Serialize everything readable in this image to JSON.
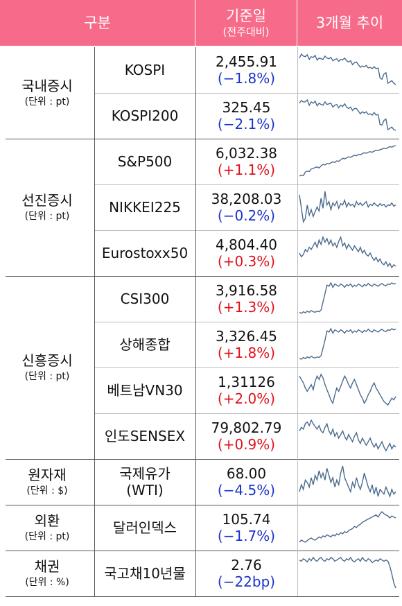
{
  "header": {
    "col_category": "구분",
    "col_value": "기준일",
    "col_value_sub": "(전주대비)",
    "col_trend": "3개월 추이"
  },
  "groups": [
    {
      "name": "국내증시",
      "unit": "(단위 : pt)",
      "rows": [
        {
          "index": "KOSPI",
          "value": "2,455.91",
          "change": "(−1.8%)",
          "direction": "down",
          "trend": [
            60,
            66,
            63,
            62,
            65,
            58,
            62,
            61,
            64,
            57,
            60,
            59,
            58,
            63,
            60,
            59,
            61,
            56,
            58,
            59,
            55,
            58,
            57,
            60,
            56,
            54,
            56,
            50,
            53,
            54,
            50,
            46,
            48,
            47,
            49,
            45,
            46,
            44,
            47,
            44,
            45,
            30,
            28,
            36,
            38,
            22,
            24,
            26,
            22,
            20
          ]
        },
        {
          "index": "KOSPI200",
          "value": "325.45",
          "change": "(−2.1%)",
          "direction": "down",
          "trend": [
            60,
            64,
            62,
            62,
            65,
            57,
            62,
            60,
            63,
            56,
            60,
            58,
            57,
            62,
            58,
            59,
            60,
            54,
            57,
            58,
            53,
            57,
            55,
            59,
            54,
            52,
            54,
            49,
            52,
            52,
            48,
            44,
            47,
            45,
            47,
            43,
            44,
            42,
            46,
            42,
            43,
            28,
            27,
            34,
            36,
            20,
            22,
            24,
            20,
            19
          ]
        }
      ]
    },
    {
      "name": "선진증시",
      "unit": "(단위 : pt)",
      "rows": [
        {
          "index": "S&P500",
          "value": "6,032.38",
          "change": "(+1.1%)",
          "direction": "up",
          "trend": [
            10,
            12,
            11,
            18,
            20,
            19,
            24,
            25,
            27,
            28,
            26,
            30,
            33,
            32,
            35,
            34,
            36,
            38,
            37,
            40,
            39,
            42,
            45,
            44,
            46,
            48,
            47,
            49,
            51,
            50,
            53,
            52,
            54,
            56,
            55,
            57,
            58,
            57,
            59,
            61,
            60,
            62,
            63,
            65,
            64,
            66,
            68,
            67,
            69,
            70
          ]
        },
        {
          "index": "NIKKEI225",
          "value": "38,208.03",
          "change": "(−0.2%)",
          "direction": "down",
          "trend": [
            60,
            40,
            20,
            25,
            45,
            30,
            38,
            28,
            35,
            42,
            36,
            55,
            40,
            65,
            45,
            50,
            38,
            48,
            44,
            50,
            40,
            47,
            45,
            52,
            42,
            48,
            44,
            46,
            42,
            50,
            45,
            48,
            44,
            47,
            50,
            42,
            46,
            44,
            48,
            45,
            43,
            47,
            44,
            46,
            42,
            45,
            44,
            48,
            43,
            45
          ]
        },
        {
          "index": "Eurostoxx50",
          "value": "4,804.40",
          "change": "(+0.3%)",
          "direction": "up",
          "trend": [
            40,
            35,
            38,
            45,
            42,
            48,
            45,
            50,
            55,
            48,
            58,
            52,
            62,
            55,
            60,
            52,
            58,
            50,
            54,
            48,
            56,
            62,
            50,
            54,
            46,
            52,
            48,
            44,
            50,
            46,
            42,
            48,
            40,
            44,
            38,
            36,
            40,
            34,
            30,
            34,
            28,
            32,
            26,
            24,
            28,
            22,
            26,
            20,
            24,
            22
          ]
        }
      ]
    },
    {
      "name": "신흥증시",
      "unit": "(단위 : pt)",
      "rows": [
        {
          "index": "CSI300",
          "value": "3,916.58",
          "change": "(+1.3%)",
          "direction": "up",
          "trend": [
            12,
            10,
            13,
            11,
            14,
            12,
            15,
            13,
            12,
            14,
            13,
            16,
            30,
            45,
            60,
            58,
            64,
            56,
            62,
            60,
            58,
            62,
            60,
            56,
            61,
            59,
            62,
            57,
            60,
            58,
            62,
            60,
            57,
            61,
            59,
            63,
            60,
            58,
            62,
            60,
            58,
            61,
            63,
            60,
            59,
            62,
            61,
            64,
            62,
            63
          ]
        },
        {
          "index": "상해종합",
          "value": "3,326.45",
          "change": "(+1.8%)",
          "direction": "up",
          "trend": [
            10,
            9,
            12,
            10,
            13,
            11,
            14,
            12,
            11,
            13,
            12,
            15,
            28,
            42,
            58,
            56,
            62,
            54,
            60,
            58,
            56,
            60,
            58,
            54,
            59,
            57,
            60,
            55,
            58,
            56,
            60,
            58,
            55,
            59,
            57,
            61,
            58,
            56,
            60,
            58,
            56,
            59,
            61,
            58,
            57,
            60,
            59,
            62,
            60,
            61
          ]
        },
        {
          "index": "베트남VN30",
          "value": "1,31126",
          "change": "(+2.0%)",
          "direction": "up",
          "trend": [
            62,
            58,
            54,
            48,
            44,
            48,
            52,
            46,
            56,
            62,
            58,
            64,
            60,
            52,
            46,
            40,
            34,
            30,
            40,
            48,
            44,
            50,
            56,
            62,
            58,
            52,
            48,
            54,
            58,
            52,
            46,
            40,
            36,
            30,
            34,
            40,
            44,
            50,
            54,
            48,
            44,
            40,
            36,
            32,
            30,
            28,
            32,
            36,
            34,
            38
          ]
        },
        {
          "index": "인도SENSEX",
          "value": "79,802.79",
          "change": "(+0.9%)",
          "direction": "up",
          "trend": [
            50,
            54,
            52,
            58,
            60,
            56,
            62,
            58,
            55,
            52,
            56,
            50,
            48,
            54,
            58,
            50,
            46,
            52,
            44,
            48,
            42,
            46,
            50,
            44,
            40,
            46,
            42,
            38,
            44,
            48,
            40,
            36,
            42,
            38,
            34,
            38,
            42,
            36,
            32,
            36,
            30,
            34,
            38,
            32,
            28,
            32,
            36,
            30,
            34,
            32
          ]
        }
      ]
    },
    {
      "name": "원자재",
      "unit": "(단위 : $)",
      "rows": [
        {
          "index": "국제유가\n(WTI)",
          "value": "68.00",
          "change": "(−4.5%)",
          "direction": "down",
          "trend": [
            40,
            46,
            42,
            50,
            48,
            44,
            52,
            46,
            54,
            50,
            58,
            52,
            56,
            50,
            60,
            54,
            48,
            52,
            44,
            50,
            46,
            56,
            62,
            52,
            48,
            44,
            40,
            48,
            44,
            52,
            46,
            42,
            48,
            56,
            50,
            44,
            40,
            46,
            38,
            44,
            36,
            42,
            40,
            38,
            44,
            40,
            36,
            42,
            38,
            40
          ]
        }
      ]
    },
    {
      "name": "외환",
      "unit": "(단위 : pt)",
      "rows": [
        {
          "index": "달러인덱스",
          "value": "105.74",
          "change": "(−1.7%)",
          "direction": "down",
          "trend": [
            10,
            14,
            12,
            10,
            13,
            16,
            18,
            15,
            14,
            17,
            20,
            18,
            22,
            20,
            24,
            22,
            20,
            24,
            22,
            26,
            24,
            28,
            26,
            30,
            28,
            32,
            34,
            36,
            40,
            38,
            42,
            44,
            48,
            50,
            52,
            54,
            56,
            58,
            60,
            62,
            58,
            64,
            68,
            64,
            62,
            60,
            56,
            60,
            58,
            56
          ]
        }
      ]
    },
    {
      "name": "채권",
      "unit": "(단위 : %)",
      "rows": [
        {
          "index": "국고채10년물",
          "value": "2.76",
          "change": "(−22bp)",
          "direction": "down",
          "trend": [
            58,
            56,
            60,
            58,
            55,
            60,
            57,
            62,
            58,
            56,
            60,
            62,
            58,
            56,
            60,
            58,
            62,
            60,
            56,
            58,
            60,
            62,
            58,
            56,
            60,
            58,
            62,
            57,
            55,
            58,
            60,
            56,
            62,
            58,
            56,
            60,
            58,
            54,
            56,
            58,
            56,
            60,
            58,
            56,
            58,
            56,
            48,
            36,
            22,
            14
          ]
        }
      ]
    }
  ]
}
